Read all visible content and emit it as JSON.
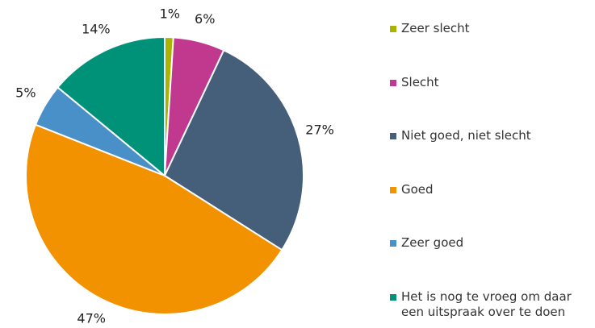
{
  "chart_data": {
    "type": "pie",
    "categories": [
      "Zeer slecht",
      "Slecht",
      "Niet goed, niet slecht",
      "Goed",
      "Zeer goed",
      "Het is nog te vroeg om daar een uitspraak over te doen"
    ],
    "values": [
      1,
      6,
      27,
      47,
      5,
      14
    ],
    "value_labels": [
      "1%",
      "6%",
      "27%",
      "47%",
      "5%",
      "14%"
    ],
    "colors": [
      "#aab400",
      "#c0398f",
      "#455e7a",
      "#f39200",
      "#4a90c8",
      "#009278"
    ],
    "legend": "right"
  }
}
